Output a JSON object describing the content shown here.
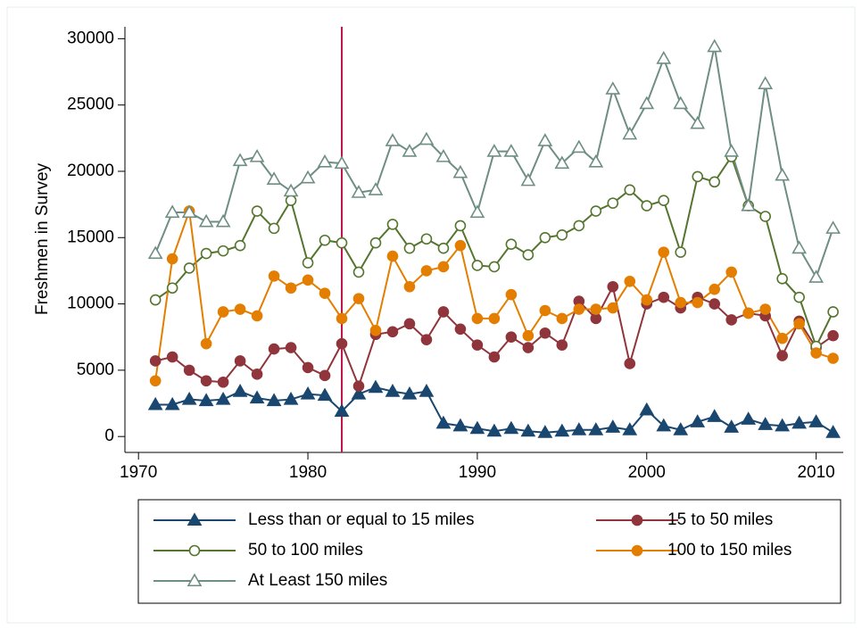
{
  "chart_data": {
    "type": "line",
    "y_label": "Freshmen in Survey",
    "x": [
      1971,
      1972,
      1973,
      1974,
      1975,
      1976,
      1977,
      1978,
      1979,
      1980,
      1981,
      1982,
      1983,
      1984,
      1985,
      1986,
      1987,
      1988,
      1989,
      1990,
      1991,
      1992,
      1993,
      1994,
      1995,
      1996,
      1997,
      1998,
      1999,
      2000,
      2001,
      2002,
      2003,
      2004,
      2005,
      2006,
      2007,
      2008,
      2009,
      2010,
      2011
    ],
    "xlim": [
      1969.2,
      2011.6
    ],
    "xticks": [
      1970,
      1980,
      1990,
      2000,
      2010
    ],
    "ylim": [
      -1200,
      30900
    ],
    "yticks": [
      0,
      5000,
      10000,
      15000,
      20000,
      25000,
      30000
    ],
    "vlines": [
      1982
    ],
    "vline_color": "#c0144a",
    "grid": false,
    "legend_position": "bottom",
    "series": [
      {
        "name": "Less than or equal to 15 miles",
        "color": "#1a476f",
        "marker": "triangle",
        "values": [
          2400,
          2400,
          2800,
          2700,
          2800,
          3400,
          2900,
          2700,
          2800,
          3200,
          3100,
          1900,
          3200,
          3700,
          3400,
          3200,
          3400,
          1000,
          800,
          600,
          400,
          600,
          400,
          300,
          400,
          500,
          500,
          700,
          500,
          2000,
          800,
          500,
          1100,
          1500,
          700,
          1300,
          900,
          800,
          1000,
          1100,
          300
        ]
      },
      {
        "name": "15 to 50 miles",
        "color": "#90353b",
        "marker": "circle",
        "values": [
          5700,
          6000,
          5000,
          4200,
          4100,
          5700,
          4700,
          6600,
          6700,
          5200,
          4600,
          7000,
          3800,
          7700,
          7900,
          8500,
          7300,
          9400,
          8100,
          6900,
          6000,
          7500,
          6700,
          7800,
          6900,
          10200,
          8900,
          11300,
          5500,
          10000,
          10500,
          9700,
          10500,
          10000,
          8800,
          9300,
          9100,
          6100,
          8700,
          6700,
          7600
        ]
      },
      {
        "name": "50 to 100 miles",
        "color": "#55752f",
        "marker": "circle-open",
        "values": [
          10300,
          11200,
          12700,
          13800,
          14000,
          14400,
          17000,
          15700,
          17800,
          13100,
          14800,
          14600,
          12400,
          14600,
          16000,
          14200,
          14900,
          14200,
          15900,
          12900,
          12800,
          14500,
          13700,
          15000,
          15200,
          15900,
          17000,
          17600,
          18600,
          17400,
          17800,
          13900,
          19600,
          19200,
          21100,
          17400,
          16600,
          11900,
          10500,
          6800,
          9400
        ]
      },
      {
        "name": "100 to 150 miles",
        "color": "#e37e00",
        "marker": "circle",
        "values": [
          4200,
          13400,
          17000,
          7000,
          9400,
          9600,
          9100,
          12100,
          11200,
          11800,
          10800,
          8900,
          10400,
          8000,
          13600,
          11300,
          12500,
          12800,
          14400,
          8900,
          8900,
          10700,
          7600,
          9500,
          8900,
          9600,
          9600,
          9700,
          11700,
          10300,
          13900,
          10100,
          10100,
          11100,
          12400,
          9300,
          9600,
          7400,
          8500,
          6300,
          5900
        ]
      },
      {
        "name": "At Least 150 miles",
        "color": "#6e8e84",
        "marker": "triangle-open",
        "values": [
          13800,
          16900,
          16900,
          16200,
          16200,
          20800,
          21100,
          19400,
          18500,
          19500,
          20700,
          20600,
          18400,
          18600,
          22300,
          21500,
          22400,
          21100,
          19900,
          16900,
          21500,
          21500,
          19300,
          22300,
          20600,
          21800,
          20700,
          26200,
          22800,
          25100,
          28500,
          25100,
          23600,
          29400,
          21500,
          17400,
          26600,
          19700,
          14200,
          12000,
          15700
        ]
      }
    ]
  }
}
